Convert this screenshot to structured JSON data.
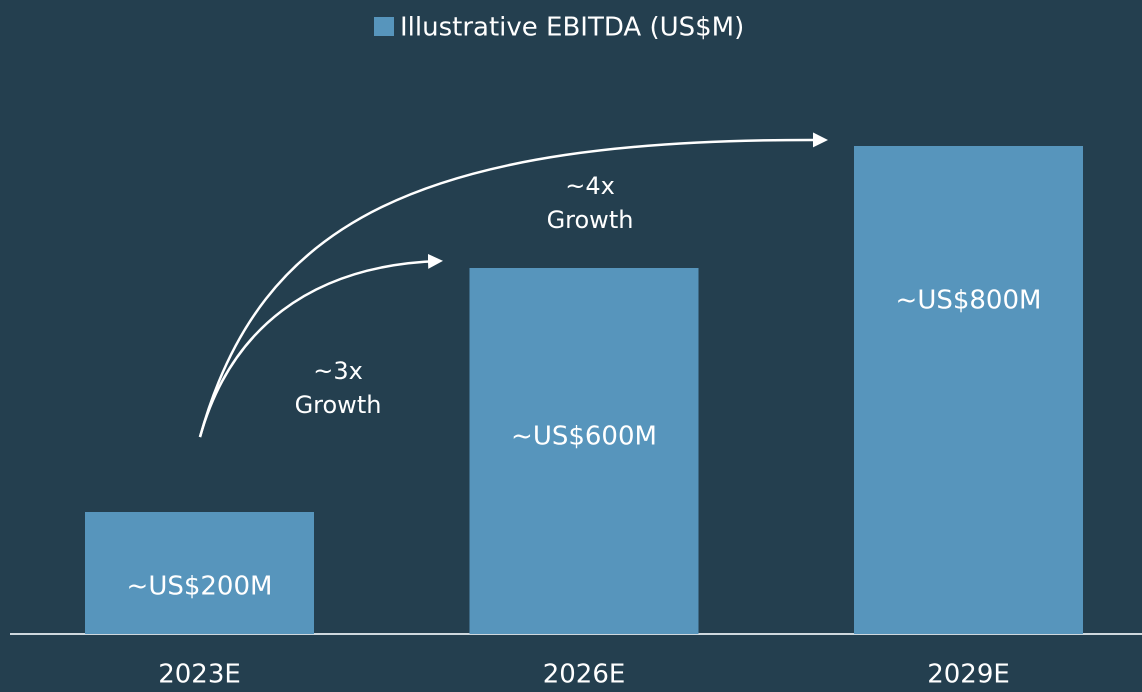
{
  "chart_data": {
    "type": "bar",
    "legend": "Illustrative EBITDA (US$M)",
    "categories": [
      "2023E",
      "2026E",
      "2029E"
    ],
    "values": [
      200,
      600,
      800
    ],
    "value_labels": [
      "~US$200M",
      "~US$600M",
      "~US$800M"
    ],
    "color": "#5795bc",
    "annotations": [
      [
        "~3x",
        "Growth"
      ],
      [
        "~4x",
        "Growth"
      ]
    ]
  }
}
